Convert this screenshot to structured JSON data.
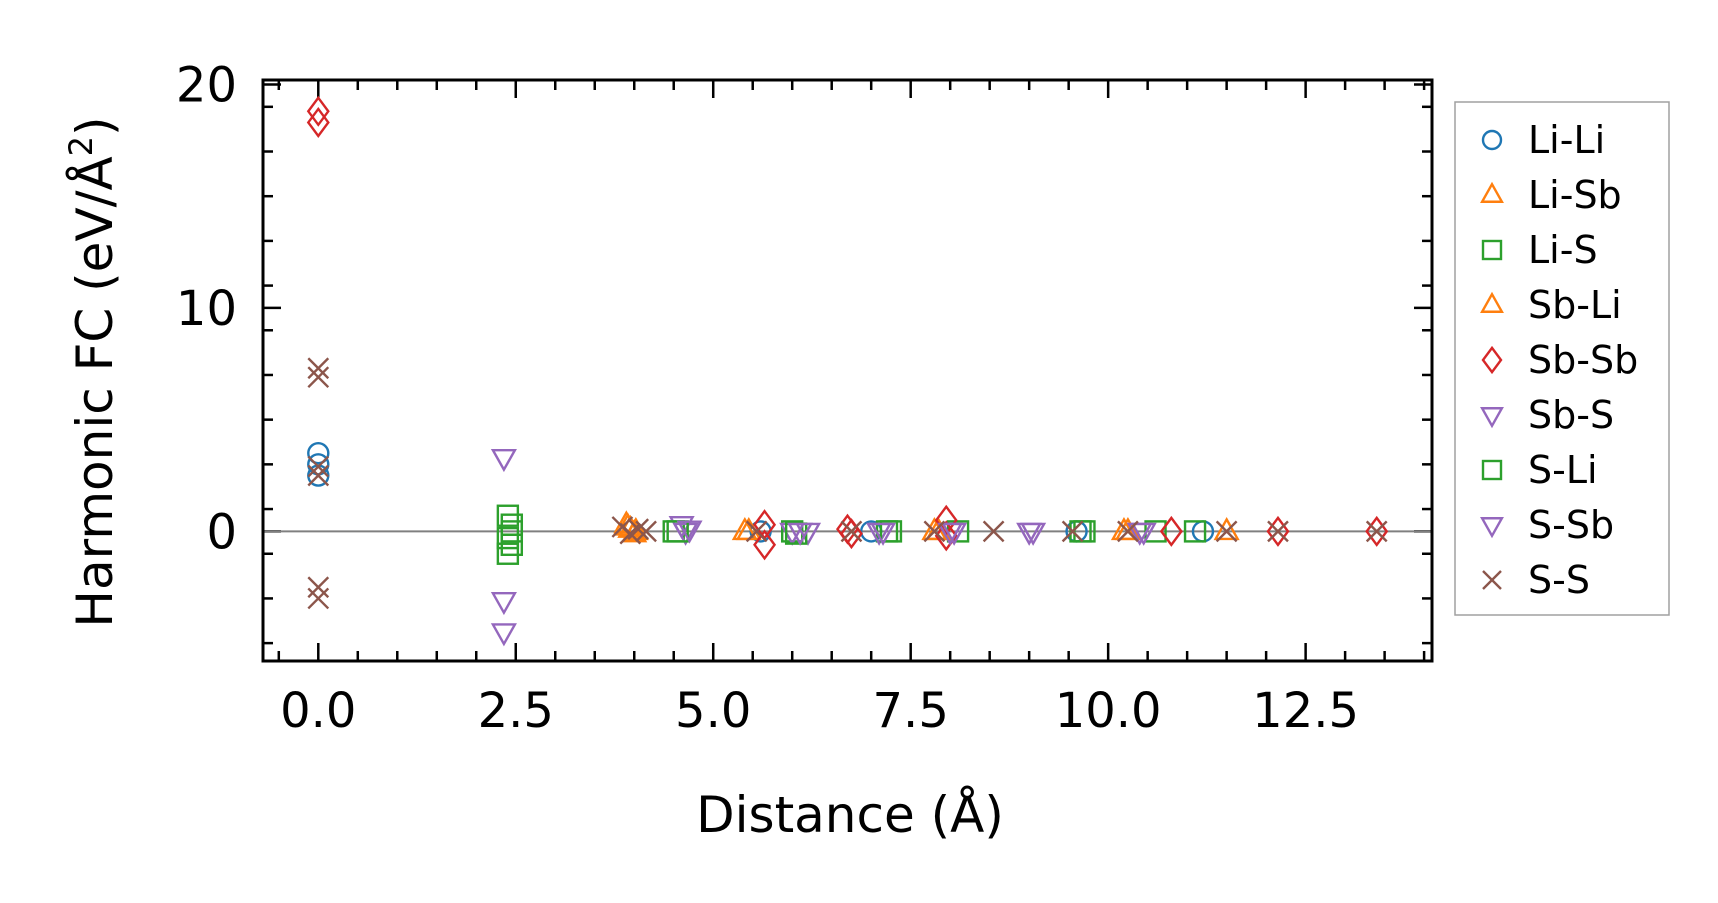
{
  "chart_data": {
    "type": "scatter",
    "title": "",
    "xlabel": "Distance (Å)",
    "ylabel_main": "Harmonic FC (eV/Å",
    "ylabel_sup": "2",
    "ylabel_close": ")",
    "xlim": [
      -0.7,
      14.1
    ],
    "ylim": [
      -5.8,
      20.2
    ],
    "xticks": [
      0.0,
      2.5,
      5.0,
      7.5,
      10.0,
      12.5
    ],
    "xtick_labels": [
      "0.0",
      "2.5",
      "5.0",
      "7.5",
      "10.0",
      "12.5"
    ],
    "yticks": [
      0,
      10,
      20
    ],
    "ytick_labels": [
      "0",
      "10",
      "20"
    ],
    "zero_line": true,
    "grid": false,
    "legend_position": "outside-right",
    "series": [
      {
        "name": "Li-Li",
        "marker": "circle",
        "color": "#1f77b4",
        "points": [
          [
            0,
            3.5
          ],
          [
            0,
            3.0
          ],
          [
            0,
            2.5
          ],
          [
            5.6,
            0.0
          ],
          [
            7.0,
            0.0
          ],
          [
            9.6,
            0.0
          ],
          [
            11.2,
            0.0
          ]
        ]
      },
      {
        "name": "Li-Sb",
        "marker": "triangle-up",
        "color": "#ff7f0e",
        "points": [
          [
            3.9,
            0.3
          ],
          [
            3.95,
            0.1
          ],
          [
            4.0,
            -0.1
          ],
          [
            5.4,
            0.0
          ],
          [
            7.8,
            0.0
          ],
          [
            10.2,
            0.0
          ],
          [
            11.5,
            0.0
          ]
        ]
      },
      {
        "name": "Li-S",
        "marker": "square",
        "color": "#2ca02c",
        "points": [
          [
            2.4,
            0.7
          ],
          [
            2.45,
            0.3
          ],
          [
            2.45,
            0.0
          ],
          [
            2.4,
            -0.3
          ],
          [
            2.45,
            -0.6
          ],
          [
            2.4,
            -1.0
          ],
          [
            4.5,
            0.0
          ],
          [
            6.0,
            0.0
          ],
          [
            7.2,
            0.0
          ],
          [
            8.1,
            0.0
          ],
          [
            9.7,
            0.0
          ],
          [
            10.6,
            0.0
          ],
          [
            11.1,
            0.0
          ]
        ]
      },
      {
        "name": "Sb-Li",
        "marker": "triangle-up",
        "color": "#ff7f0e",
        "points": [
          [
            3.92,
            0.2
          ],
          [
            4.02,
            0.0
          ],
          [
            5.45,
            0.0
          ],
          [
            7.85,
            0.0
          ],
          [
            10.25,
            0.0
          ]
        ]
      },
      {
        "name": "Sb-Sb",
        "marker": "diamond",
        "color": "#d62728",
        "points": [
          [
            0,
            18.8
          ],
          [
            0,
            18.3
          ],
          [
            5.65,
            0.3
          ],
          [
            5.65,
            -0.6
          ],
          [
            6.7,
            0.1
          ],
          [
            6.75,
            -0.1
          ],
          [
            7.95,
            0.5
          ],
          [
            7.95,
            -0.2
          ],
          [
            10.8,
            0.0
          ],
          [
            12.15,
            0.0
          ],
          [
            13.4,
            0.0
          ]
        ]
      },
      {
        "name": "Sb-S",
        "marker": "triangle-down",
        "color": "#9467bd",
        "points": [
          [
            2.35,
            3.3
          ],
          [
            2.35,
            -3.1
          ],
          [
            2.35,
            -4.5
          ],
          [
            4.6,
            0.3
          ],
          [
            4.65,
            0.0
          ],
          [
            6.0,
            0.0
          ],
          [
            6.2,
            0.0
          ],
          [
            7.1,
            0.0
          ],
          [
            8.0,
            0.0
          ],
          [
            9.0,
            0.0
          ],
          [
            10.4,
            0.0
          ]
        ]
      },
      {
        "name": "S-Li",
        "marker": "square",
        "color": "#2ca02c",
        "points": [
          [
            4.55,
            0.0
          ],
          [
            6.05,
            -0.1
          ],
          [
            7.25,
            0.0
          ],
          [
            9.65,
            0.0
          ]
        ]
      },
      {
        "name": "S-Sb",
        "marker": "triangle-down",
        "color": "#9467bd",
        "points": [
          [
            4.7,
            0.1
          ],
          [
            6.1,
            0.0
          ],
          [
            7.15,
            0.0
          ],
          [
            8.05,
            0.0
          ],
          [
            9.05,
            0.0
          ],
          [
            10.45,
            0.0
          ]
        ]
      },
      {
        "name": "S-S",
        "marker": "x",
        "color": "#8c564b",
        "points": [
          [
            0,
            7.3
          ],
          [
            0,
            6.9
          ],
          [
            0,
            2.9
          ],
          [
            0,
            2.5
          ],
          [
            0,
            -2.5
          ],
          [
            0,
            -3.0
          ],
          [
            3.85,
            0.2
          ],
          [
            3.95,
            -0.1
          ],
          [
            4.05,
            0.1
          ],
          [
            4.15,
            0.0
          ],
          [
            5.55,
            0.0
          ],
          [
            6.75,
            0.0
          ],
          [
            7.8,
            0.0
          ],
          [
            8.55,
            0.0
          ],
          [
            9.55,
            0.0
          ],
          [
            10.25,
            0.0
          ],
          [
            11.5,
            0.0
          ],
          [
            12.15,
            0.0
          ],
          [
            13.4,
            0.0
          ]
        ]
      }
    ]
  }
}
